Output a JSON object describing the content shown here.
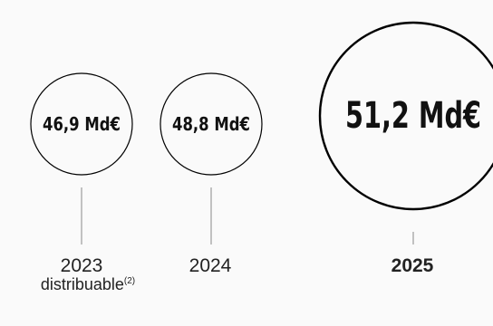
{
  "chart_data": {
    "type": "bubble",
    "categories": [
      "2023",
      "2024",
      "2025"
    ],
    "values": [
      46.9,
      48.8,
      51.2
    ],
    "value_labels": [
      "46,9 Md€",
      "48,8 Md€",
      "51,2 Md€"
    ],
    "category_notes": [
      "distribuable",
      "",
      ""
    ],
    "footnote_refs": [
      "(2)",
      "",
      ""
    ],
    "highlighted": "2025",
    "title": "",
    "xlabel": "",
    "ylabel": ""
  },
  "colors": {
    "circle_stroke": "#000000",
    "text": "#111111",
    "leader_line": "#888888",
    "background": "#fafafa"
  }
}
